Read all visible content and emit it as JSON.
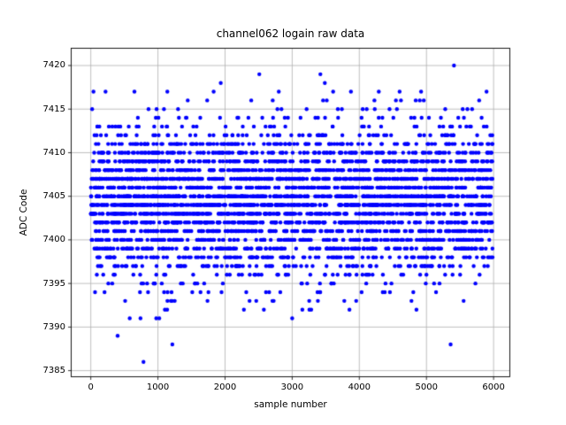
{
  "figure": {
    "background": "#ffffff",
    "spine_color": "#000000",
    "text_color": "#000000"
  },
  "chart_data": {
    "type": "scatter",
    "title": "channel062 logain raw data",
    "xlabel": "sample number",
    "ylabel": "ADC Code",
    "legend": null,
    "grid": true,
    "grid_color": "#b0b0b0",
    "marker": {
      "shape": "dot",
      "color": "#0000ff",
      "radius_px": 2.2
    },
    "x_ticks": [
      0,
      1000,
      2000,
      3000,
      4000,
      5000,
      6000
    ],
    "y_ticks": [
      7385,
      7390,
      7395,
      7400,
      7405,
      7410,
      7415,
      7420
    ],
    "xlim": [
      -292,
      6242
    ],
    "ylim": [
      7384.3,
      7421.98
    ],
    "x_range": [
      0,
      5985
    ],
    "n_samples_approx": 6000,
    "adc_value_range": [
      7386,
      7420
    ],
    "description": "~6000 ADC samples; y is integer ADC code bands, density peaks near 7403-7405",
    "adc_band_counts": {
      "7392": 9,
      "7393": 16,
      "7394": 24,
      "7395": 30,
      "7396": 48,
      "7397": 90,
      "7398": 130,
      "7399": 180,
      "7400": 210,
      "7401": 225,
      "7402": 245,
      "7403": 290,
      "7404": 330,
      "7405": 330,
      "7406": 270,
      "7407": 310,
      "7408": 240,
      "7409": 200,
      "7410": 160,
      "7411": 130,
      "7412": 70,
      "7413": 46,
      "7414": 32
    },
    "explicit_points": {
      "7386": [
        785
      ],
      "7388": [
        1215,
        5360
      ],
      "7389": [
        400
      ],
      "7391": [
        580,
        740,
        975,
        1020,
        3000
      ],
      "7415": [
        20,
        860,
        980,
        1090,
        1300,
        2780,
        2840,
        3215,
        3680,
        3740,
        4050,
        4110,
        4230,
        4450,
        4560,
        5280,
        5540,
        5610,
        5680
      ],
      "7416": [
        1444,
        1734,
        2390,
        2710,
        3460,
        3515,
        4225,
        4545,
        4620,
        4840,
        4900,
        4960,
        5785
      ],
      "7417": [
        40,
        220,
        650,
        1140,
        1830,
        2800,
        3610,
        3875,
        4290,
        4600,
        4920,
        5895
      ],
      "7418": [
        1936,
        3486
      ],
      "7419": [
        2510,
        3420
      ],
      "7420": [
        5410
      ]
    }
  }
}
